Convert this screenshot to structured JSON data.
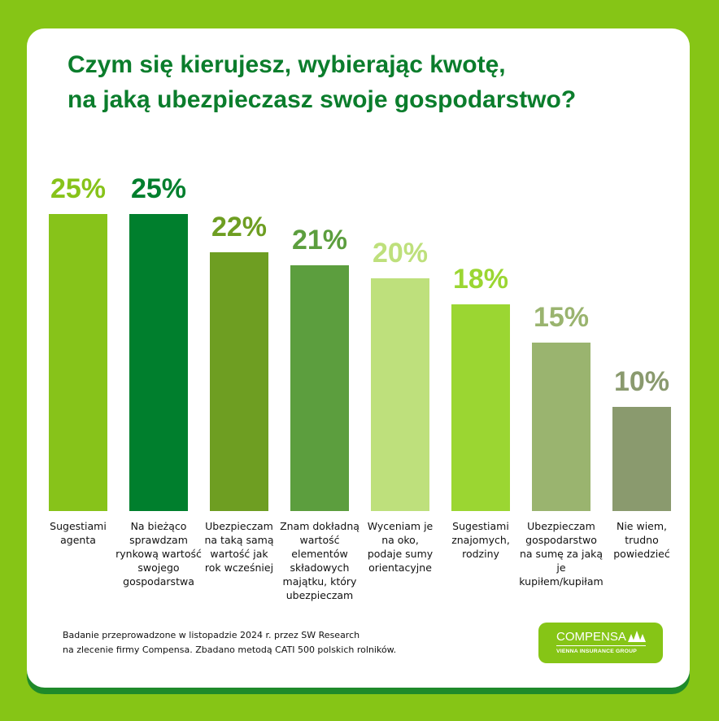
{
  "title_lines": [
    "Czym się kierujesz, wybierając kwotę,",
    "na jaką ubezpieczasz swoje gospodarstwo?"
  ],
  "chart_data": {
    "type": "bar",
    "title": "Czym się kierujesz, wybierając kwotę, na jaką ubezpieczasz swoje gospodarstwo?",
    "categories": [
      "Sugestiami agenta",
      "Na bieżąco sprawdzam rynkową wartość swojego gospodarstwa",
      "Ubezpieczam na taką samą wartość jak rok wcześniej",
      "Znam dokładną wartość elementów składowych majątku, który ubezpieczam",
      "Wyceniam je na oko, podaje sumy orientacyjne",
      "Sugestiami znajomych, rodziny",
      "Ubezpieczam gospodarstwo na sumę za jaką je kupiłem/kupiłam",
      "Nie wiem, trudno powiedzieć"
    ],
    "category_lines": [
      [
        "Sugestiami",
        "agenta"
      ],
      [
        "Na bieżąco",
        "sprawdzam",
        "rynkową wartość",
        "swojego",
        "gospodarstwa"
      ],
      [
        "Ubezpieczam",
        "na taką samą",
        "wartość jak",
        "rok wcześniej"
      ],
      [
        "Znam dokładną",
        "wartość",
        "elementów",
        "składowych",
        "majątku, który",
        "ubezpieczam"
      ],
      [
        "Wyceniam je",
        "na oko,",
        "podaje sumy",
        "orientacyjne"
      ],
      [
        "Sugestiami",
        "znajomych,",
        "rodziny"
      ],
      [
        "Ubezpieczam",
        "gospodarstwo",
        "na sumę za jaką",
        "je kupiłem/kupiłam"
      ],
      [
        "Nie wiem,",
        "trudno",
        "powiedzieć"
      ]
    ],
    "values": [
      25,
      25,
      22,
      21,
      20,
      18,
      15,
      10
    ],
    "data_labels": [
      "25%",
      "25%",
      "22%",
      "21%",
      "20%",
      "18%",
      "15%",
      "10%"
    ],
    "colors": [
      "#87c31a",
      "#007f2d",
      "#6e9e22",
      "#5c9e3e",
      "#bee07c",
      "#9bd632",
      "#9ab46f",
      "#8a9a6e"
    ],
    "unit": "%",
    "grid": false,
    "legend": "none"
  },
  "footnote_lines": [
    "Badanie przeprowadzone w listopadzie 2024 r. przez SW Research",
    "na zlecenie firmy Compensa. Zbadano metodą CATI 500 polskich rolników."
  ],
  "logo": {
    "name": "COMPENSA",
    "subtitle": "VIENNA INSURANCE GROUP"
  },
  "colors": {
    "background": "#86c516",
    "title": "#0b7d2c",
    "card": "#ffffff"
  }
}
